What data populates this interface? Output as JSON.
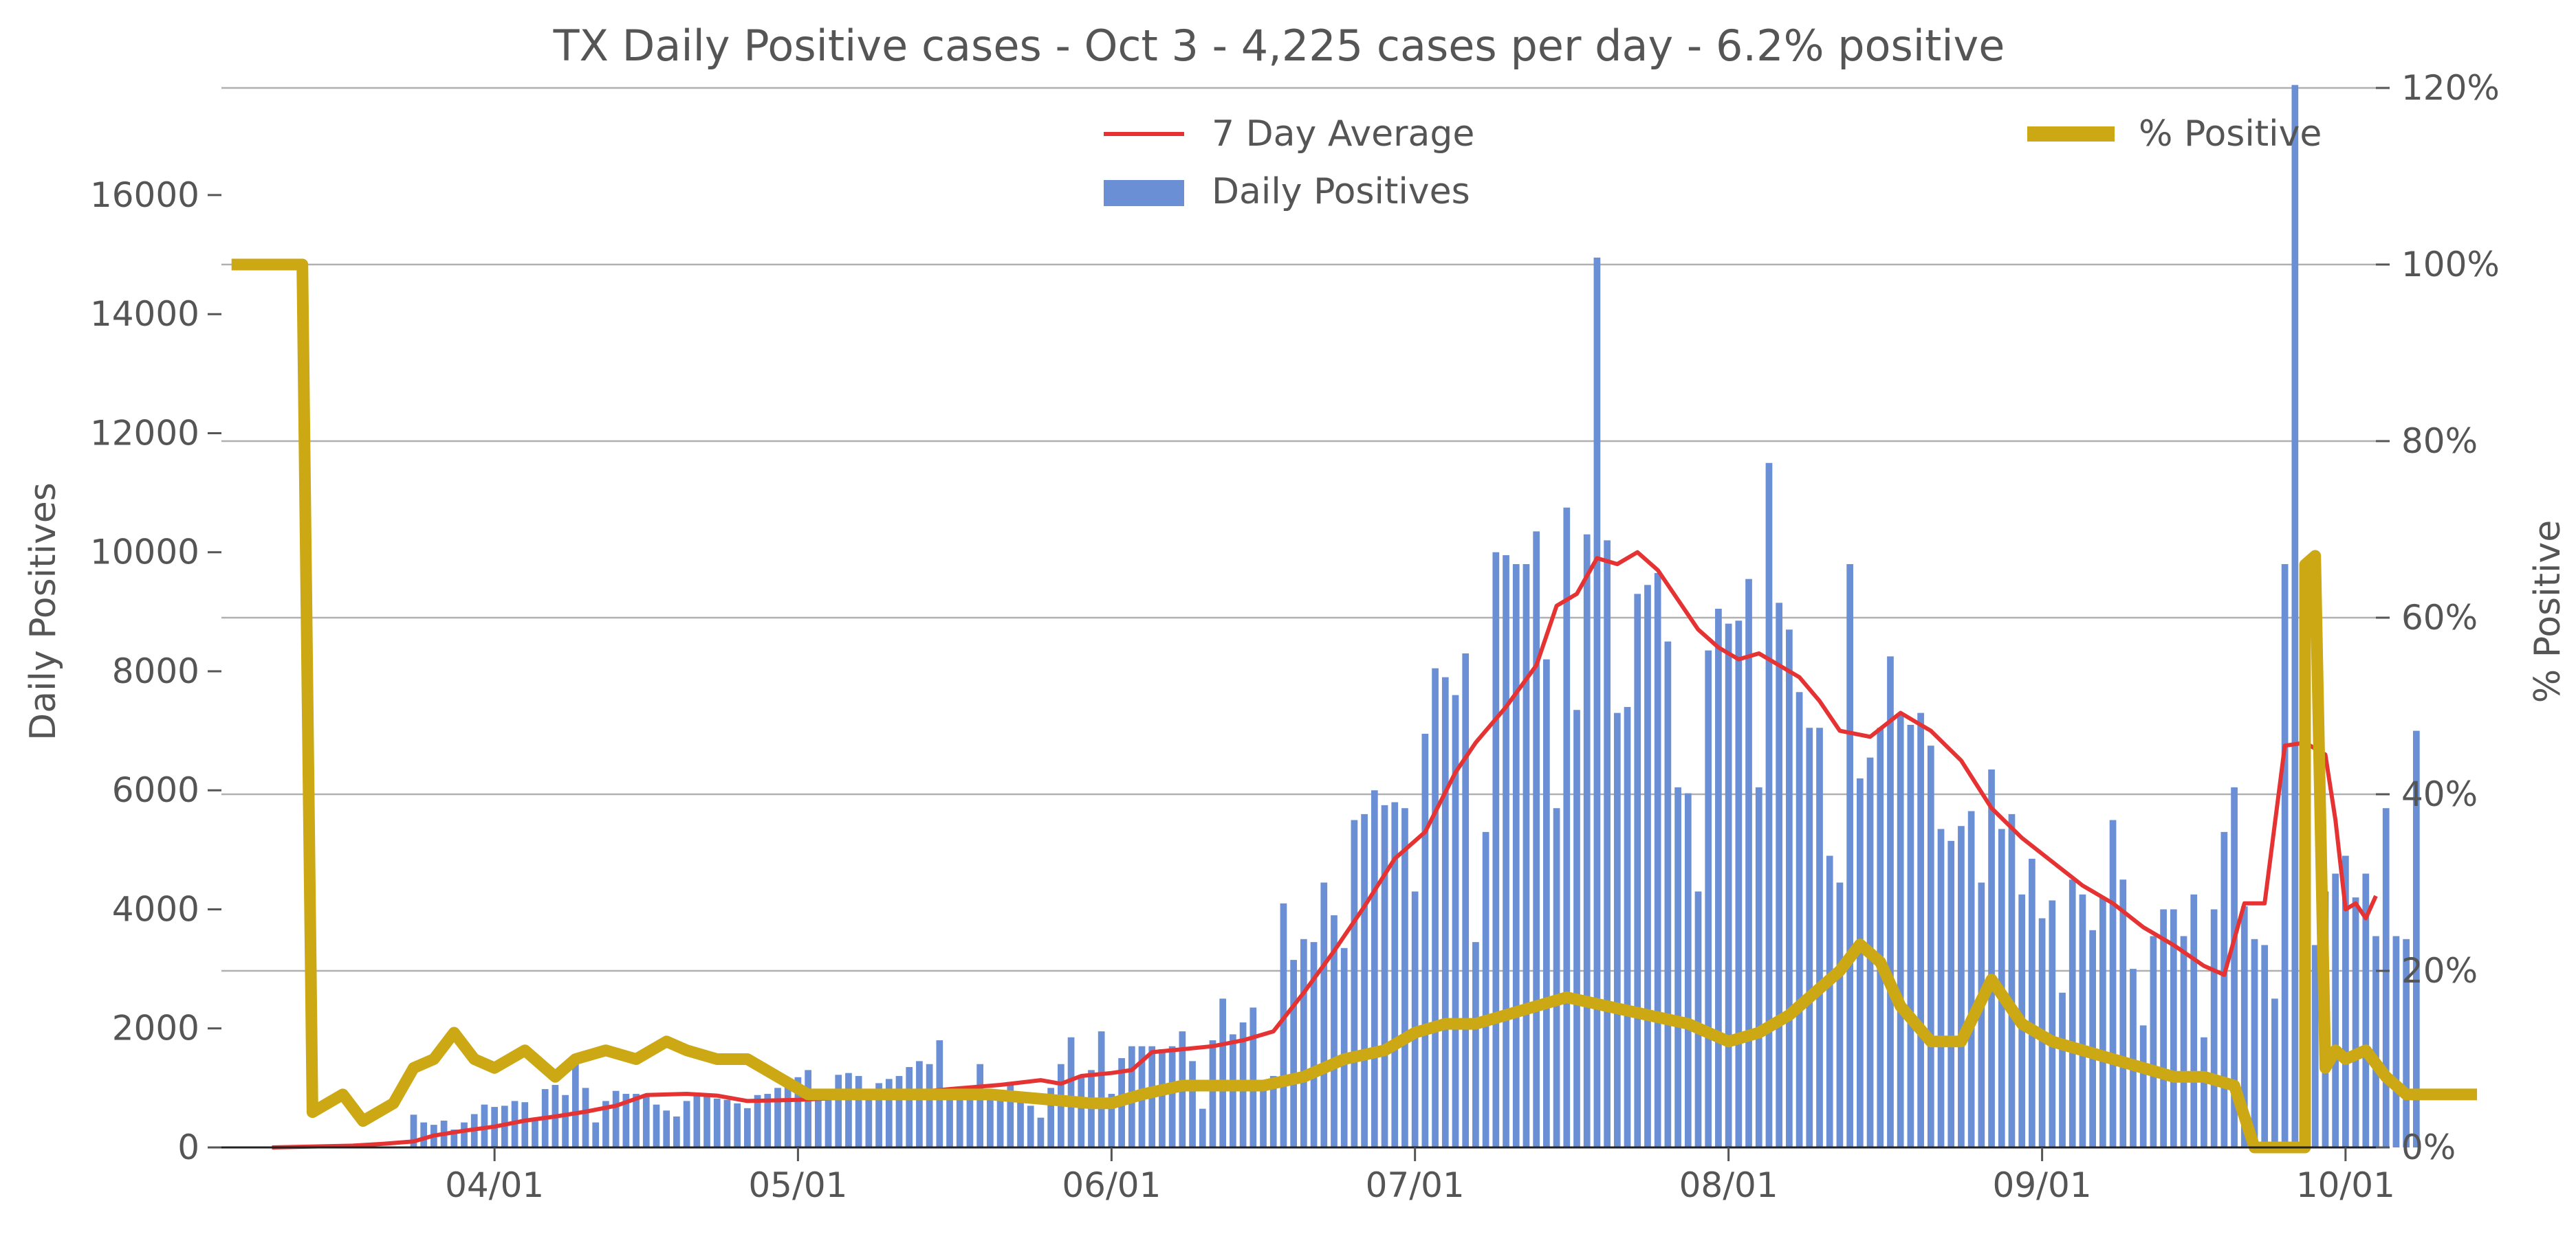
{
  "chart_data": {
    "type": "bar",
    "title": "TX Daily Positive cases - Oct 3 - 4,225 cases per day - 6.2% positive",
    "ylabel": "Daily Positives",
    "y2label": "% Positive",
    "ylim": [
      0,
      17800
    ],
    "y2lim": [
      0,
      120
    ],
    "xlim": [
      "2020-03-05",
      "2020-10-04"
    ],
    "yticks": [
      "0",
      "2000",
      "4000",
      "6000",
      "8000",
      "10000",
      "12000",
      "14000",
      "16000"
    ],
    "y2ticks": [
      "0%",
      "20%",
      "40%",
      "60%",
      "80%",
      "100%",
      "120%"
    ],
    "xticks": [
      {
        "date": "2020-04-01",
        "label": "04/01"
      },
      {
        "date": "2020-05-01",
        "label": "05/01"
      },
      {
        "date": "2020-06-01",
        "label": "06/01"
      },
      {
        "date": "2020-07-01",
        "label": "07/01"
      },
      {
        "date": "2020-08-01",
        "label": "08/01"
      },
      {
        "date": "2020-09-01",
        "label": "09/01"
      },
      {
        "date": "2020-10-01",
        "label": "10/01"
      }
    ],
    "grid": true,
    "legend_position": "top",
    "colors": {
      "bars": "#6b8fd4",
      "average": "#e53333",
      "percent": "#cca814",
      "text": "#555555"
    },
    "series": [
      {
        "name": "Daily Positives",
        "kind": "bar",
        "start_date": "2020-03-24",
        "values": [
          550,
          420,
          380,
          450,
          300,
          420,
          560,
          720,
          680,
          700,
          780,
          760,
          450,
          980,
          1050,
          880,
          1450,
          1000,
          420,
          780,
          950,
          900,
          900,
          860,
          720,
          620,
          520,
          780,
          860,
          900,
          820,
          800,
          740,
          660,
          880,
          900,
          1000,
          1050,
          1180,
          1300,
          900,
          980,
          1220,
          1250,
          1200,
          980,
          1080,
          1150,
          1200,
          1350,
          1450,
          1400,
          1800,
          900,
          850,
          950,
          1400,
          800,
          900,
          1100,
          850,
          700,
          500,
          1000,
          1400,
          1850,
          1200,
          1300,
          1950,
          900,
          1500,
          1700,
          1700,
          1700,
          1650,
          1700,
          1950,
          1450,
          650,
          1800,
          2500,
          1900,
          2100,
          2350,
          1000,
          1200,
          4100,
          3150,
          3500,
          3450,
          4450,
          3900,
          3350,
          5500,
          5600,
          6000,
          5750,
          5800,
          5700,
          4300,
          6950,
          8050,
          7900,
          7600,
          8300,
          3450,
          5300,
          10000,
          9950,
          9800,
          9800,
          10350,
          8200,
          5700,
          10750,
          7350,
          10300,
          14950,
          10200,
          7300,
          7400,
          9300,
          9450,
          9650,
          8500,
          6050,
          5950,
          4300,
          8350,
          9050,
          8800,
          8850,
          9550,
          6050,
          11500,
          9150,
          8700,
          7650,
          7050,
          7050,
          4900,
          4450,
          9800,
          6200,
          6550,
          7050,
          8250,
          7300,
          7100,
          7300,
          6750,
          5350,
          5150,
          5400,
          5650,
          4450,
          6350,
          5350,
          5600,
          4250,
          4850,
          3850,
          4150,
          2600,
          4500,
          4250,
          3650,
          4200,
          5500,
          4500,
          3000,
          2050,
          3550,
          4000,
          4000,
          3550,
          4250,
          1850,
          4000,
          5300,
          6050,
          4050,
          3500,
          3400,
          2500,
          9800,
          17850,
          1150,
          3400,
          4300,
          4600,
          4900,
          4200,
          4600,
          3550,
          5700,
          3550,
          3500,
          7000
        ]
      },
      {
        "name": "7 Day Average",
        "kind": "line",
        "points": [
          [
            "2020-03-10",
            0
          ],
          [
            "2020-03-18",
            30
          ],
          [
            "2020-03-21",
            60
          ],
          [
            "2020-03-24",
            100
          ],
          [
            "2020-03-26",
            200
          ],
          [
            "2020-03-29",
            280
          ],
          [
            "2020-04-01",
            350
          ],
          [
            "2020-04-04",
            450
          ],
          [
            "2020-04-07",
            520
          ],
          [
            "2020-04-10",
            600
          ],
          [
            "2020-04-13",
            700
          ],
          [
            "2020-04-16",
            880
          ],
          [
            "2020-04-20",
            900
          ],
          [
            "2020-04-23",
            870
          ],
          [
            "2020-04-26",
            780
          ],
          [
            "2020-05-01",
            800
          ],
          [
            "2020-05-06",
            840
          ],
          [
            "2020-05-11",
            900
          ],
          [
            "2020-05-16",
            980
          ],
          [
            "2020-05-21",
            1050
          ],
          [
            "2020-05-25",
            1130
          ],
          [
            "2020-05-27",
            1070
          ],
          [
            "2020-05-29",
            1200
          ],
          [
            "2020-06-01",
            1250
          ],
          [
            "2020-06-03",
            1300
          ],
          [
            "2020-06-05",
            1600
          ],
          [
            "2020-06-08",
            1650
          ],
          [
            "2020-06-11",
            1700
          ],
          [
            "2020-06-14",
            1800
          ],
          [
            "2020-06-17",
            1950
          ],
          [
            "2020-06-20",
            2600
          ],
          [
            "2020-06-23",
            3300
          ],
          [
            "2020-06-26",
            4050
          ],
          [
            "2020-06-29",
            4850
          ],
          [
            "2020-07-02",
            5300
          ],
          [
            "2020-07-05",
            6300
          ],
          [
            "2020-07-07",
            6800
          ],
          [
            "2020-07-10",
            7400
          ],
          [
            "2020-07-13",
            8100
          ],
          [
            "2020-07-15",
            9100
          ],
          [
            "2020-07-17",
            9300
          ],
          [
            "2020-07-19",
            9900
          ],
          [
            "2020-07-21",
            9800
          ],
          [
            "2020-07-23",
            10000
          ],
          [
            "2020-07-25",
            9700
          ],
          [
            "2020-07-27",
            9200
          ],
          [
            "2020-07-29",
            8700
          ],
          [
            "2020-07-31",
            8400
          ],
          [
            "2020-08-02",
            8200
          ],
          [
            "2020-08-04",
            8300
          ],
          [
            "2020-08-06",
            8100
          ],
          [
            "2020-08-08",
            7900
          ],
          [
            "2020-08-10",
            7500
          ],
          [
            "2020-08-12",
            7000
          ],
          [
            "2020-08-15",
            6900
          ],
          [
            "2020-08-18",
            7300
          ],
          [
            "2020-08-21",
            7000
          ],
          [
            "2020-08-24",
            6500
          ],
          [
            "2020-08-27",
            5700
          ],
          [
            "2020-08-30",
            5200
          ],
          [
            "2020-09-02",
            4800
          ],
          [
            "2020-09-05",
            4400
          ],
          [
            "2020-09-08",
            4100
          ],
          [
            "2020-09-11",
            3700
          ],
          [
            "2020-09-14",
            3400
          ],
          [
            "2020-09-17",
            3050
          ],
          [
            "2020-09-19",
            2900
          ],
          [
            "2020-09-21",
            4100
          ],
          [
            "2020-09-23",
            4100
          ],
          [
            "2020-09-25",
            6750
          ],
          [
            "2020-09-27",
            6800
          ],
          [
            "2020-09-29",
            6600
          ],
          [
            "2020-09-30",
            5500
          ],
          [
            "2020-10-01",
            4000
          ],
          [
            "2020-10-02",
            4100
          ],
          [
            "2020-10-03",
            3850
          ],
          [
            "2020-10-04",
            4225
          ]
        ]
      },
      {
        "name": "% Positive",
        "kind": "line",
        "axis": "right",
        "points": [
          [
            "2020-03-06",
            100
          ],
          [
            "2020-03-13",
            100
          ],
          [
            "2020-03-14",
            4
          ],
          [
            "2020-03-17",
            6
          ],
          [
            "2020-03-19",
            3
          ],
          [
            "2020-03-22",
            5
          ],
          [
            "2020-03-24",
            9
          ],
          [
            "2020-03-26",
            10
          ],
          [
            "2020-03-28",
            13
          ],
          [
            "2020-03-30",
            10
          ],
          [
            "2020-04-01",
            9
          ],
          [
            "2020-04-04",
            11
          ],
          [
            "2020-04-07",
            8
          ],
          [
            "2020-04-09",
            10
          ],
          [
            "2020-04-12",
            11
          ],
          [
            "2020-04-15",
            10
          ],
          [
            "2020-04-18",
            12
          ],
          [
            "2020-04-20",
            11
          ],
          [
            "2020-04-23",
            10
          ],
          [
            "2020-04-26",
            10
          ],
          [
            "2020-04-29",
            8
          ],
          [
            "2020-05-02",
            6
          ],
          [
            "2020-05-05",
            6
          ],
          [
            "2020-05-10",
            6
          ],
          [
            "2020-05-15",
            6
          ],
          [
            "2020-05-20",
            6
          ],
          [
            "2020-05-25",
            5.5
          ],
          [
            "2020-05-30",
            5
          ],
          [
            "2020-06-01",
            5
          ],
          [
            "2020-06-04",
            6
          ],
          [
            "2020-06-08",
            7
          ],
          [
            "2020-06-12",
            7
          ],
          [
            "2020-06-16",
            7
          ],
          [
            "2020-06-20",
            8
          ],
          [
            "2020-06-24",
            10
          ],
          [
            "2020-06-28",
            11
          ],
          [
            "2020-07-01",
            13
          ],
          [
            "2020-07-04",
            14
          ],
          [
            "2020-07-07",
            14
          ],
          [
            "2020-07-10",
            15
          ],
          [
            "2020-07-13",
            16
          ],
          [
            "2020-07-16",
            17
          ],
          [
            "2020-07-20",
            16
          ],
          [
            "2020-07-24",
            15
          ],
          [
            "2020-07-28",
            14
          ],
          [
            "2020-08-01",
            12
          ],
          [
            "2020-08-04",
            13
          ],
          [
            "2020-08-07",
            15
          ],
          [
            "2020-08-10",
            18
          ],
          [
            "2020-08-12",
            20
          ],
          [
            "2020-08-14",
            23
          ],
          [
            "2020-08-16",
            21
          ],
          [
            "2020-08-18",
            16
          ],
          [
            "2020-08-21",
            12
          ],
          [
            "2020-08-24",
            12
          ],
          [
            "2020-08-27",
            19
          ],
          [
            "2020-08-30",
            14
          ],
          [
            "2020-09-02",
            12
          ],
          [
            "2020-09-05",
            11
          ],
          [
            "2020-09-08",
            10
          ],
          [
            "2020-09-11",
            9
          ],
          [
            "2020-09-14",
            8
          ],
          [
            "2020-09-17",
            8
          ],
          [
            "2020-09-20",
            7
          ],
          [
            "2020-09-22",
            0
          ],
          [
            "2020-09-27",
            0
          ],
          [
            "2020-09-27",
            66
          ],
          [
            "2020-09-28",
            67
          ],
          [
            "2020-09-29",
            9
          ],
          [
            "2020-09-30",
            11
          ],
          [
            "2020-10-01",
            10
          ],
          [
            "2020-10-03",
            11
          ],
          [
            "2020-10-05",
            8
          ],
          [
            "2020-10-07",
            6
          ],
          [
            "2020-10-10",
            6
          ],
          [
            "2020-10-12",
            6
          ],
          [
            "2020-10-14",
            6
          ]
        ]
      }
    ],
    "legend": [
      "7 Day Average",
      "Daily Positives",
      "% Positive"
    ]
  }
}
